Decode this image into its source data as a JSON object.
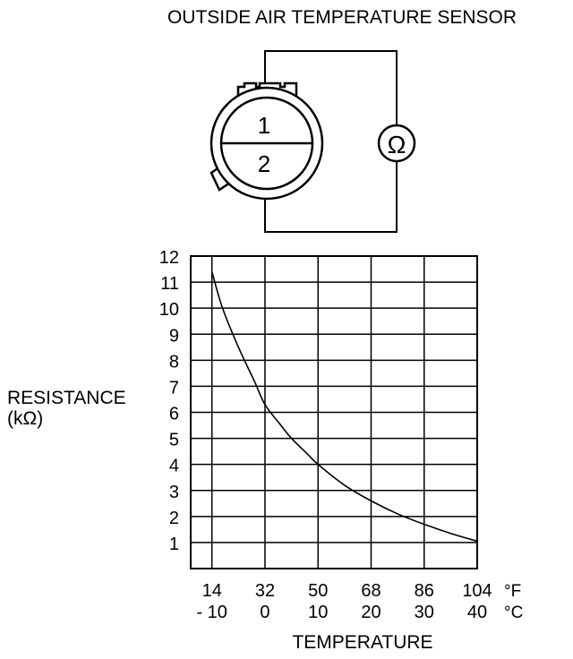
{
  "title": "OUTSIDE AIR TEMPERATURE SENSOR",
  "connector": {
    "pin1": "1",
    "pin2": "2",
    "meter_symbol": "Ω"
  },
  "chart_data": {
    "type": "line",
    "ylabel_line1": "RESISTANCE",
    "ylabel_line2": "(kΩ)",
    "xlabel": "TEMPERATURE",
    "y_ticks": [
      "12",
      "11",
      "10",
      "9",
      "8",
      "7",
      "6",
      "5",
      "4",
      "3",
      "2",
      "1"
    ],
    "x_ticks_f": [
      "14",
      "32",
      "50",
      "68",
      "86",
      "104"
    ],
    "x_ticks_c": [
      "- 10",
      "0",
      "10",
      "20",
      "30",
      "40"
    ],
    "unit_f": "°F",
    "unit_c": "°C",
    "ylim": [
      0,
      12
    ],
    "xlim_c": [
      -14,
      40
    ],
    "grid": true,
    "series": [
      {
        "x": [
          -10,
          -8,
          -5,
          -2,
          0,
          3,
          5,
          8,
          10,
          15,
          20,
          25,
          30,
          35,
          40
        ],
        "y": [
          11.4,
          10.0,
          8.5,
          7.2,
          6.3,
          5.5,
          5.0,
          4.4,
          4.0,
          3.2,
          2.6,
          2.1,
          1.7,
          1.35,
          1.05
        ]
      }
    ]
  },
  "colors": {
    "line": "#000000",
    "background": "#ffffff"
  }
}
